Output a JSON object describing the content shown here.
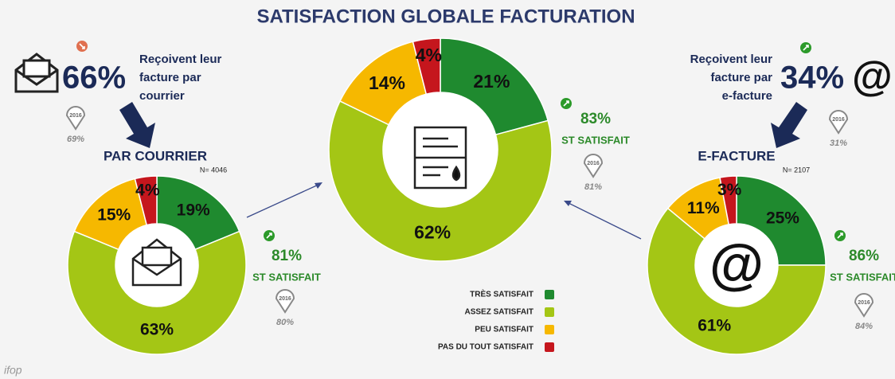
{
  "title": "SATISFACTION GLOBALE FACTURATION",
  "footer": "ifop",
  "panels": [
    {
      "share": "66%",
      "lines": [
        "Reçoivent leur",
        "facture par",
        "courrier"
      ],
      "year": "2016",
      "prev": "69%"
    },
    {
      "share": "34%",
      "lines": [
        "Reçoivent leur",
        "facture par",
        "e-facture"
      ],
      "icon": "@",
      "year": "2016",
      "prev": "31%"
    }
  ],
  "chart_data": [
    {
      "type": "donut",
      "title": "PAR COURRIER",
      "note": "N= 4046",
      "categories": [
        "TRÈS SATISFAIT",
        "ASSEZ SATISFAIT",
        "PEU SATISFAIT",
        "PAS DU TOUT SATISFAIT"
      ],
      "values": [
        19,
        63,
        15,
        4
      ],
      "value_labels": [
        "19%",
        "63%",
        "15%",
        "4%"
      ],
      "colors": [
        "#1f8a2f",
        "#a4c615",
        "#f6b800",
        "#c5161d"
      ],
      "summary": {
        "value": "81%",
        "label": "ST SATISFAIT",
        "year": "2016",
        "prev": "80%"
      }
    },
    {
      "type": "donut",
      "categories": [
        "TRÈS SATISFAIT",
        "ASSEZ SATISFAIT",
        "PEU SATISFAIT",
        "PAS DU TOUT SATISFAIT"
      ],
      "values": [
        21,
        62,
        14,
        4
      ],
      "value_labels": [
        "21%",
        "62%",
        "14%",
        "4%"
      ],
      "colors": [
        "#1f8a2f",
        "#a4c615",
        "#f6b800",
        "#c5161d"
      ],
      "summary": {
        "value": "83%",
        "label": "ST SATISFAIT",
        "year": "2016",
        "prev": "81%"
      }
    },
    {
      "type": "donut",
      "title": "E-FACTURE",
      "note": "N= 2107",
      "icon": "@",
      "categories": [
        "TRÈS SATISFAIT",
        "ASSEZ SATISFAIT",
        "PEU SATISFAIT",
        "PAS DU TOUT SATISFAIT"
      ],
      "values": [
        25,
        61,
        11,
        3
      ],
      "value_labels": [
        "25%",
        "61%",
        "11%",
        "3%"
      ],
      "colors": [
        "#1f8a2f",
        "#a4c615",
        "#f6b800",
        "#c5161d"
      ],
      "summary": {
        "value": "86%",
        "label": "ST SATISFAIT",
        "year": "2016",
        "prev": "84%"
      }
    }
  ]
}
